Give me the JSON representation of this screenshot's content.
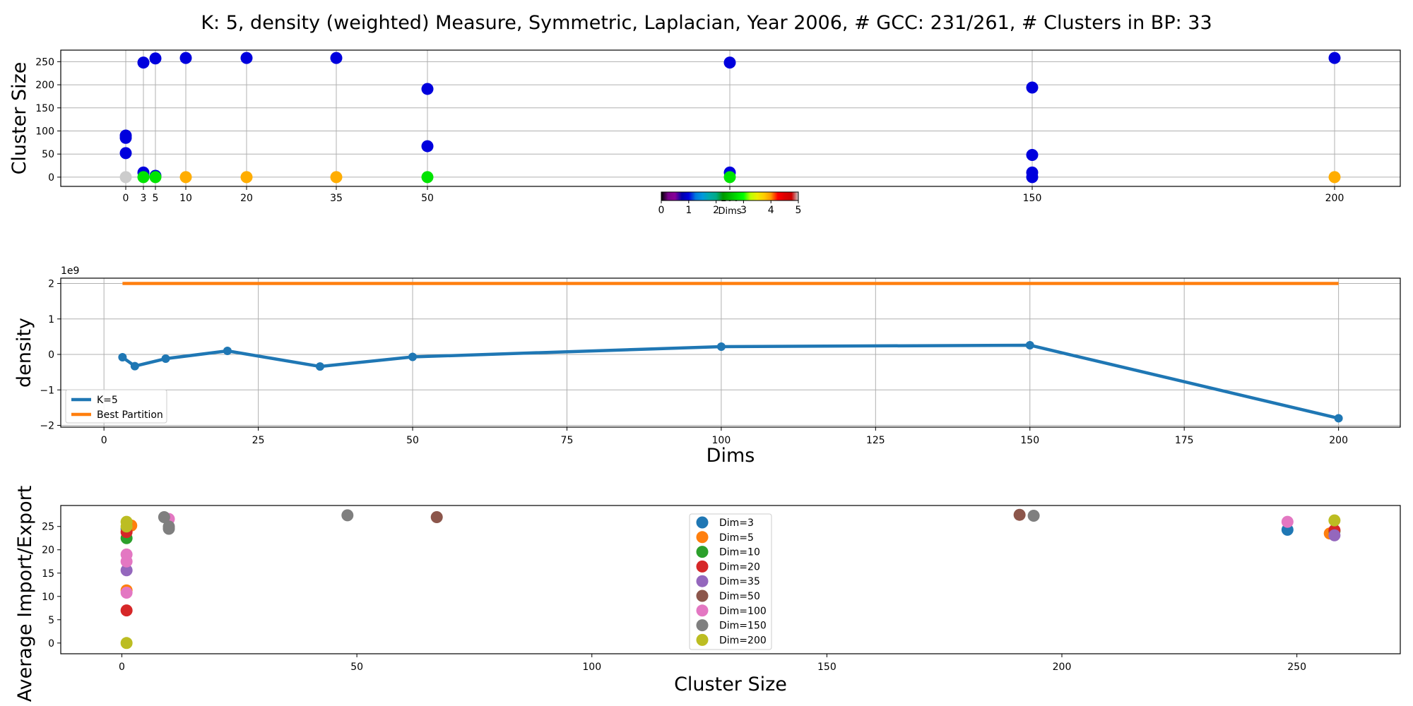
{
  "title": "K: 5, density (weighted) Measure, Symmetric, Laplacian, Year 2006, # GCC: 231/261, # Clusters in BP: 33",
  "chart_data": [
    {
      "type": "scatter",
      "ylabel": "Cluster Size",
      "x_ticks": [
        0,
        3,
        5,
        10,
        20,
        35,
        50,
        100,
        150,
        200
      ],
      "y_ticks": [
        0,
        50,
        100,
        150,
        200,
        250
      ],
      "ylim": [
        -20,
        275
      ],
      "grid": true,
      "colorbar": {
        "label": "Dims",
        "ticks": [
          0,
          1,
          2,
          3,
          4,
          5
        ],
        "range": [
          0,
          5
        ],
        "colormap": "nipy_spectral"
      },
      "points": [
        {
          "x": 0,
          "y": 90,
          "dims": 1
        },
        {
          "x": 0,
          "y": 85,
          "dims": 1
        },
        {
          "x": 0,
          "y": 52,
          "dims": 1
        },
        {
          "x": 0,
          "y": 0,
          "dims": 5
        },
        {
          "x": 3,
          "y": 248,
          "dims": 1
        },
        {
          "x": 3,
          "y": 10,
          "dims": 1
        },
        {
          "x": 3,
          "y": 0,
          "dims": 2.8
        },
        {
          "x": 5,
          "y": 257,
          "dims": 1
        },
        {
          "x": 5,
          "y": 3,
          "dims": 1
        },
        {
          "x": 5,
          "y": 0,
          "dims": 2.8
        },
        {
          "x": 10,
          "y": 258,
          "dims": 1
        },
        {
          "x": 10,
          "y": 0,
          "dims": 3.9
        },
        {
          "x": 20,
          "y": 258,
          "dims": 1
        },
        {
          "x": 20,
          "y": 0,
          "dims": 3.9
        },
        {
          "x": 35,
          "y": 258,
          "dims": 1
        },
        {
          "x": 35,
          "y": 0,
          "dims": 3.9
        },
        {
          "x": 50,
          "y": 191,
          "dims": 1
        },
        {
          "x": 50,
          "y": 67,
          "dims": 1
        },
        {
          "x": 50,
          "y": 0,
          "dims": 2.8
        },
        {
          "x": 100,
          "y": 248,
          "dims": 1
        },
        {
          "x": 100,
          "y": 10,
          "dims": 1
        },
        {
          "x": 100,
          "y": 0,
          "dims": 2.8
        },
        {
          "x": 150,
          "y": 194,
          "dims": 1
        },
        {
          "x": 150,
          "y": 48,
          "dims": 1
        },
        {
          "x": 150,
          "y": 10,
          "dims": 1
        },
        {
          "x": 150,
          "y": 0,
          "dims": 1
        },
        {
          "x": 200,
          "y": 258,
          "dims": 1
        },
        {
          "x": 200,
          "y": 0,
          "dims": 3.9
        }
      ]
    },
    {
      "type": "line",
      "xlabel": "Dims",
      "ylabel": "density",
      "y_offset_label": "1e9",
      "x_ticks": [
        0,
        25,
        50,
        75,
        100,
        125,
        150,
        175,
        200
      ],
      "y_ticks": [
        -2,
        -1,
        0,
        1,
        2
      ],
      "xlim": [
        -7,
        210
      ],
      "ylim": [
        -2.05,
        2.15
      ],
      "grid": true,
      "legend_position": "lower-left",
      "series": [
        {
          "name": "K=5",
          "color": "#1f77b4",
          "x": [
            3,
            5,
            10,
            20,
            35,
            50,
            100,
            150,
            200
          ],
          "y": [
            -0.08,
            -0.33,
            -0.12,
            0.1,
            -0.34,
            -0.07,
            0.22,
            0.26,
            -1.8
          ]
        },
        {
          "name": "Best Partition",
          "color": "#ff7f0e",
          "x": [
            3,
            200
          ],
          "y": [
            2.0,
            2.0
          ]
        }
      ]
    },
    {
      "type": "scatter",
      "xlabel": "Cluster Size",
      "ylabel": "Average Import/Export",
      "x_ticks": [
        0,
        50,
        100,
        150,
        200,
        250
      ],
      "y_ticks": [
        0,
        5,
        10,
        15,
        20,
        25
      ],
      "xlim": [
        -13,
        272
      ],
      "ylim": [
        -2.3,
        29.5
      ],
      "grid": false,
      "legend_position": "upper-center",
      "series": [
        {
          "name": "Dim=3",
          "color": "#1f77b4",
          "points": [
            [
              1,
              24.5
            ],
            [
              248,
              24.3
            ]
          ]
        },
        {
          "name": "Dim=5",
          "color": "#ff7f0e",
          "points": [
            [
              1,
              11.3
            ],
            [
              2,
              25.2
            ],
            [
              257,
              23.5
            ]
          ]
        },
        {
          "name": "Dim=10",
          "color": "#2ca02c",
          "points": [
            [
              1,
              22.5
            ],
            [
              258,
              24.0
            ]
          ]
        },
        {
          "name": "Dim=20",
          "color": "#d62728",
          "points": [
            [
              1,
              7.0
            ],
            [
              1,
              23.8
            ],
            [
              258,
              24.2
            ]
          ]
        },
        {
          "name": "Dim=35",
          "color": "#9467bd",
          "points": [
            [
              1,
              15.6
            ],
            [
              258,
              23.1
            ]
          ]
        },
        {
          "name": "Dim=50",
          "color": "#8c564b",
          "points": [
            [
              67,
              27.0
            ],
            [
              191,
              27.5
            ]
          ]
        },
        {
          "name": "Dim=100",
          "color": "#e377c2",
          "points": [
            [
              1,
              10.8
            ],
            [
              1,
              17.5
            ],
            [
              1,
              19.0
            ],
            [
              10,
              26.6
            ],
            [
              248,
              26.0
            ]
          ]
        },
        {
          "name": "Dim=150",
          "color": "#7f7f7f",
          "points": [
            [
              9,
              27.0
            ],
            [
              10,
              24.5
            ],
            [
              10,
              25.0
            ],
            [
              48,
              27.4
            ],
            [
              194,
              27.3
            ]
          ]
        },
        {
          "name": "Dim=200",
          "color": "#bcbd22",
          "points": [
            [
              1,
              0.0
            ],
            [
              1,
              25.0
            ],
            [
              1,
              26.0
            ],
            [
              258,
              26.3
            ]
          ]
        }
      ]
    }
  ]
}
